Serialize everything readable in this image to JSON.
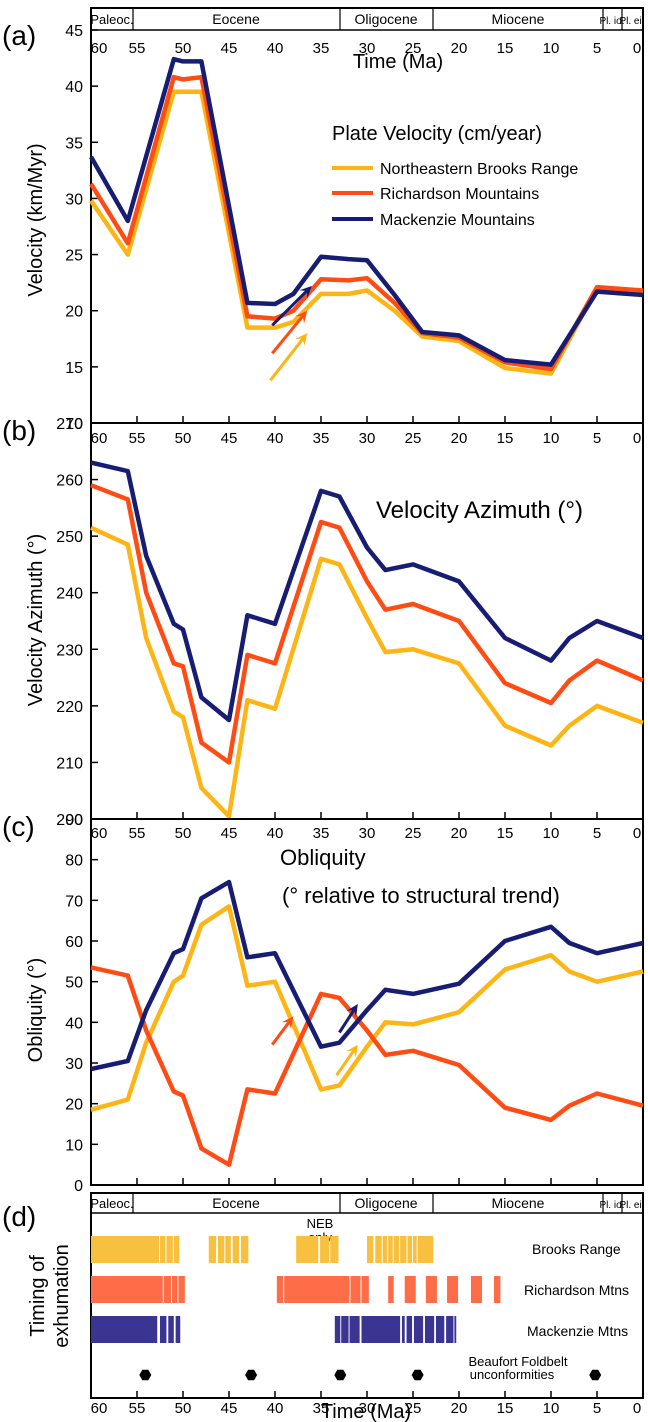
{
  "panel_a": {
    "letter": "(a)",
    "epochs": [
      "Paleoc.",
      "Eocene",
      "Oligocene",
      "Miocene",
      "Pl. io.",
      "Pl. ei."
    ],
    "x_title": "Time (Ma)",
    "ylabel": "Velocity (km/Myr)",
    "inner_title": "Plate Velocity (cm/year)"
  },
  "panel_b": {
    "letter": "(b)",
    "ylabel": "Velocity Azimuth (°)",
    "inner_title": "Velocity Azimuth (°)"
  },
  "panel_c": {
    "letter": "(c)",
    "ylabel": "Obliquity (°)",
    "inner_title_1": "Obliquity",
    "inner_title_2": "(° relative to structural trend)"
  },
  "panel_d": {
    "letter": "(d)",
    "ylabel_1": "Timing of",
    "ylabel_2": "exhumation",
    "epochs": [
      "Paleoc.",
      "Eocene",
      "Oligocene",
      "Miocene",
      "Pl. io.",
      "Pl. ei."
    ],
    "x_title": "Time (Ma)",
    "neb_note_1": "NEB",
    "neb_note_2": "only",
    "row_labels": [
      "Brooks Range",
      "Richardson Mtns",
      "Mackenzie Mtns"
    ],
    "beaufort_1": "Beaufort Foldbelt",
    "beaufort_2": "unconformities"
  },
  "colors": {
    "brooks": "#fdb515",
    "richardson": "#ff4c14",
    "mackenzie": "#161d73"
  },
  "chart_data": [
    {
      "type": "line",
      "ylim": [
        10,
        45
      ],
      "xlim": [
        60,
        0
      ],
      "x_ticks": [
        60,
        55,
        50,
        45,
        40,
        35,
        30,
        25,
        20,
        15,
        10,
        5,
        0
      ],
      "y_ticks": [
        10,
        15,
        20,
        25,
        30,
        35,
        40,
        45
      ],
      "legend": [
        "Northeastern Brooks Range",
        "Richardson Mountains",
        "Mackenzie Mountains"
      ],
      "series": [
        {
          "name": "Northeastern Brooks Range",
          "color": "#fdb515",
          "x": [
            60,
            56,
            51,
            50,
            48,
            43,
            40,
            38,
            35,
            32,
            30,
            27,
            24,
            20,
            15,
            10,
            5,
            0
          ],
          "y": [
            29.8,
            25,
            39.5,
            39.5,
            39.5,
            18.5,
            18.5,
            19,
            21.5,
            21.5,
            21.8,
            20,
            17.7,
            17.3,
            14.9,
            14.4,
            22,
            21.7
          ]
        },
        {
          "name": "Richardson Mountains",
          "color": "#ff4c14",
          "x": [
            60,
            56,
            51,
            50,
            48,
            43,
            40,
            38,
            35,
            32,
            30,
            27,
            24,
            20,
            15,
            10,
            5,
            0
          ],
          "y": [
            31.3,
            26,
            40.8,
            40.6,
            40.8,
            19.5,
            19.3,
            20,
            22.8,
            22.7,
            22.9,
            20.7,
            18,
            17.6,
            15.4,
            14.8,
            22.1,
            21.8
          ]
        },
        {
          "name": "Mackenzie Mountains",
          "color": "#161d73",
          "x": [
            60,
            56,
            51,
            50,
            48,
            43,
            40,
            38,
            35,
            32,
            30,
            27,
            24,
            20,
            15,
            10,
            5,
            0
          ],
          "y": [
            33.7,
            28,
            42.4,
            42.2,
            42.2,
            20.7,
            20.6,
            21.5,
            24.8,
            24.6,
            24.5,
            21.4,
            18.1,
            17.8,
            15.6,
            15.2,
            21.7,
            21.4
          ]
        }
      ],
      "arrows": [
        {
          "color": "#fdb515",
          "from": [
            40.5,
            13.8
          ],
          "to": [
            36.5,
            18
          ]
        },
        {
          "color": "#ff4c14",
          "from": [
            40.3,
            16.2
          ],
          "to": [
            36.5,
            20
          ]
        },
        {
          "color": "#161d73",
          "from": [
            40.3,
            18.7
          ],
          "to": [
            36,
            22.2
          ]
        }
      ]
    },
    {
      "type": "line",
      "ylim": [
        200,
        270
      ],
      "xlim": [
        60,
        0
      ],
      "x_ticks": [
        60,
        55,
        50,
        45,
        40,
        35,
        30,
        25,
        20,
        15,
        10,
        5,
        0
      ],
      "y_ticks": [
        200,
        210,
        220,
        230,
        240,
        250,
        260,
        270
      ],
      "series": [
        {
          "name": "Northeastern Brooks Range",
          "color": "#fdb515",
          "x": [
            60,
            56,
            54,
            51,
            50,
            48,
            45,
            43,
            40,
            35,
            33,
            30,
            28,
            25,
            20,
            15,
            10,
            8,
            5,
            0
          ],
          "y": [
            251.5,
            248.5,
            232,
            219,
            218,
            205.5,
            200.5,
            221,
            219.5,
            246,
            245,
            235.5,
            229.5,
            230,
            227.5,
            216.5,
            213,
            216.5,
            220,
            217
          ]
        },
        {
          "name": "Richardson Mountains",
          "color": "#ff4c14",
          "x": [
            60,
            56,
            54,
            51,
            50,
            48,
            45,
            43,
            40,
            35,
            33,
            30,
            28,
            25,
            20,
            15,
            10,
            8,
            5,
            0
          ],
          "y": [
            259,
            256.5,
            240,
            227.5,
            227,
            213.5,
            210,
            229,
            227.5,
            252.5,
            251.5,
            242,
            237,
            238,
            235,
            224,
            220.5,
            224.5,
            228,
            224.5
          ]
        },
        {
          "name": "Mackenzie Mountains",
          "color": "#161d73",
          "x": [
            60,
            56,
            54,
            51,
            50,
            48,
            45,
            43,
            40,
            35,
            33,
            30,
            28,
            25,
            20,
            15,
            10,
            8,
            5,
            0
          ],
          "y": [
            263,
            261.5,
            246.5,
            234.5,
            233.5,
            221.5,
            217.5,
            236,
            234.5,
            258,
            257,
            248,
            244,
            245,
            242,
            232,
            228,
            232,
            235,
            232
          ]
        }
      ]
    },
    {
      "type": "line",
      "ylim": [
        0,
        90
      ],
      "xlim": [
        60,
        0
      ],
      "x_ticks": [
        60,
        55,
        50,
        45,
        40,
        35,
        30,
        25,
        20,
        15,
        10,
        5,
        0
      ],
      "y_ticks": [
        0,
        10,
        20,
        30,
        40,
        50,
        60,
        70,
        80,
        90
      ],
      "series": [
        {
          "name": "Northeastern Brooks Range",
          "color": "#fdb515",
          "x": [
            60,
            56,
            54,
            51,
            50,
            48,
            45,
            43,
            40,
            35,
            33,
            30,
            28,
            25,
            20,
            15,
            10,
            8,
            5,
            0
          ],
          "y": [
            18.5,
            21,
            35,
            50,
            51.5,
            64,
            68.5,
            49,
            50,
            23.5,
            24.5,
            34,
            40,
            39.5,
            42.5,
            53,
            56.5,
            52.5,
            50,
            52.5
          ]
        },
        {
          "name": "Richardson Mountains",
          "color": "#ff4c14",
          "x": [
            60,
            56,
            54,
            51,
            50,
            48,
            45,
            43,
            40,
            35,
            33,
            30,
            28,
            25,
            20,
            15,
            10,
            8,
            5,
            0
          ],
          "y": [
            53.5,
            51.5,
            38,
            23,
            22,
            9,
            5,
            23.5,
            22.5,
            47,
            46,
            38,
            32,
            33,
            29.5,
            19,
            16,
            19.5,
            22.5,
            19.5
          ]
        },
        {
          "name": "Mackenzie Mountains",
          "color": "#161d73",
          "x": [
            60,
            56,
            54,
            51,
            50,
            48,
            45,
            43,
            40,
            35,
            33,
            30,
            28,
            25,
            20,
            15,
            10,
            8,
            5,
            0
          ],
          "y": [
            28.5,
            30.5,
            43,
            57,
            58,
            70.5,
            74.5,
            56,
            57,
            34,
            35,
            43,
            48,
            47,
            49.5,
            60,
            63.5,
            59.5,
            57,
            59.5
          ]
        }
      ],
      "arrows": [
        {
          "color": "#ff4c14",
          "from": [
            40.3,
            34.5
          ],
          "to": [
            38,
            41.5
          ]
        },
        {
          "color": "#fdb515",
          "from": [
            33.3,
            27
          ],
          "to": [
            31,
            34.5
          ]
        },
        {
          "color": "#161d73",
          "from": [
            33,
            37.5
          ],
          "to": [
            31,
            44.5
          ]
        }
      ]
    },
    {
      "type": "bar",
      "xlim": [
        60,
        0
      ],
      "x_ticks": [
        60,
        55,
        50,
        45,
        40,
        35,
        30,
        25,
        20,
        15,
        10,
        5,
        0
      ],
      "categories": [
        "Brooks Range",
        "Richardson Mtns",
        "Mackenzie Mtns"
      ],
      "series": [
        {
          "name": "Brooks Range",
          "color": "#f7c03e",
          "intervals": [
            [
              60,
              52.6
            ],
            [
              52.5,
              51.9
            ],
            [
              51.8,
              51.1
            ],
            [
              51,
              50.4
            ],
            [
              47.2,
              46.4
            ],
            [
              46.2,
              45.5
            ],
            [
              45.4,
              44.8
            ],
            [
              44.6,
              43.9
            ],
            [
              43.7,
              42.9
            ],
            [
              37.7,
              35.3
            ],
            [
              35.1,
              34.1
            ],
            [
              34,
              33.1
            ],
            [
              30,
              29.3
            ],
            [
              29.1,
              28.4
            ],
            [
              28.3,
              27.8
            ],
            [
              27.7,
              27.2
            ],
            [
              27.1,
              26.5
            ],
            [
              26.4,
              25.7
            ],
            [
              25.6,
              25.1
            ],
            [
              25,
              24.6
            ],
            [
              24.5,
              22.8
            ]
          ]
        },
        {
          "name": "Richardson Mtns",
          "color": "#ff6c48",
          "intervals": [
            [
              60,
              52.2
            ],
            [
              52.1,
              51.3
            ],
            [
              51.2,
              50.6
            ],
            [
              50.5,
              49.8
            ],
            [
              39.8,
              39.1
            ],
            [
              39,
              31.9
            ],
            [
              31.8,
              30.7
            ],
            [
              30.6,
              29.8
            ],
            [
              27.7,
              27.1
            ],
            [
              25.9,
              24.7
            ],
            [
              23.6,
              22.4
            ],
            [
              21.3,
              20.1
            ],
            [
              18.7,
              17.5
            ],
            [
              16.2,
              15.5
            ]
          ]
        },
        {
          "name": "Mackenzie Mtns",
          "color": "#3a3592",
          "intervals": [
            [
              60,
              52.8
            ],
            [
              52.5,
              51.8
            ],
            [
              51.6,
              51
            ],
            [
              50.8,
              50.3
            ],
            [
              33.5,
              32.9
            ],
            [
              32.8,
              32
            ],
            [
              31.9,
              30.8
            ],
            [
              30.6,
              26.4
            ],
            [
              26.2,
              25.9
            ],
            [
              25.7,
              25.1
            ],
            [
              24.9,
              23.9
            ],
            [
              23.7,
              22.7
            ],
            [
              22.5,
              21.6
            ],
            [
              21.4,
              20.6
            ],
            [
              20.5,
              20.3
            ]
          ]
        }
      ],
      "unconformities": [
        54.1,
        42.6,
        32.9,
        24.5,
        5.2
      ]
    }
  ]
}
